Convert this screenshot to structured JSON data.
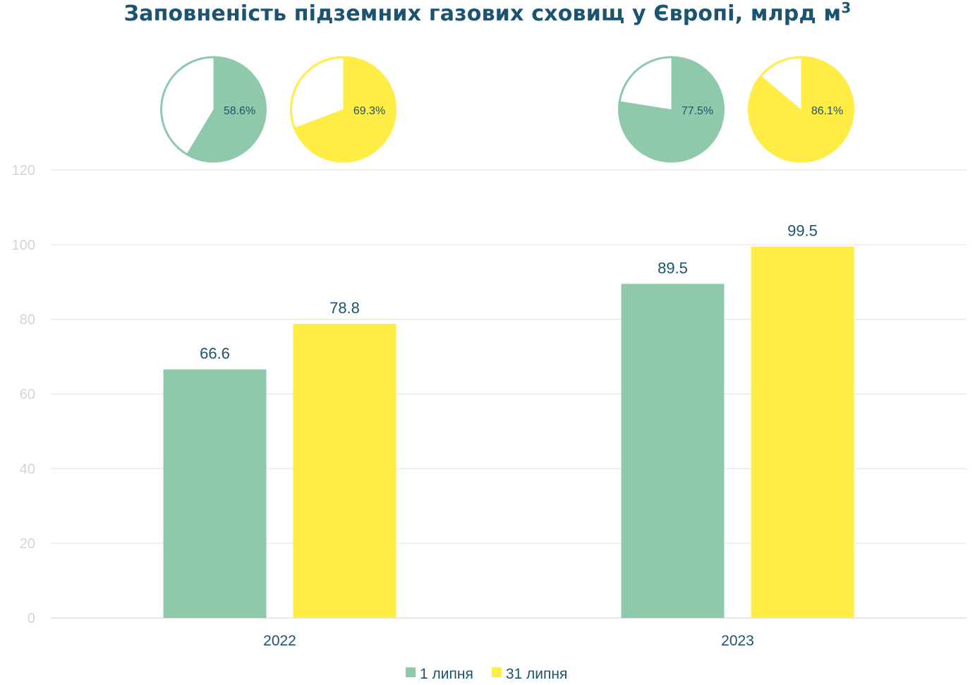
{
  "chart_data": {
    "type": "bar",
    "title": "Заповненість підземних газових сховищ у Європі, млрд м",
    "title_sup": "3",
    "categories": [
      "2022",
      "2023"
    ],
    "series": [
      {
        "name": "1 липня",
        "values": [
          66.6,
          89.5
        ],
        "fill_pct": [
          58.6,
          77.5
        ],
        "color": "#8fc9ab"
      },
      {
        "name": "31 липня",
        "values": [
          78.8,
          99.5
        ],
        "fill_pct": [
          69.3,
          86.1
        ],
        "color": "#ffec45"
      }
    ],
    "ylim": [
      0,
      120
    ],
    "yticks": [
      0,
      20,
      40,
      60,
      80,
      100,
      120
    ],
    "grid": true,
    "legend_position": "bottom-center",
    "pie_label_format": "%"
  },
  "colors": {
    "title": "#1b5470",
    "grid": "#e6e6e6",
    "axis_text": "#d4d4d4"
  }
}
